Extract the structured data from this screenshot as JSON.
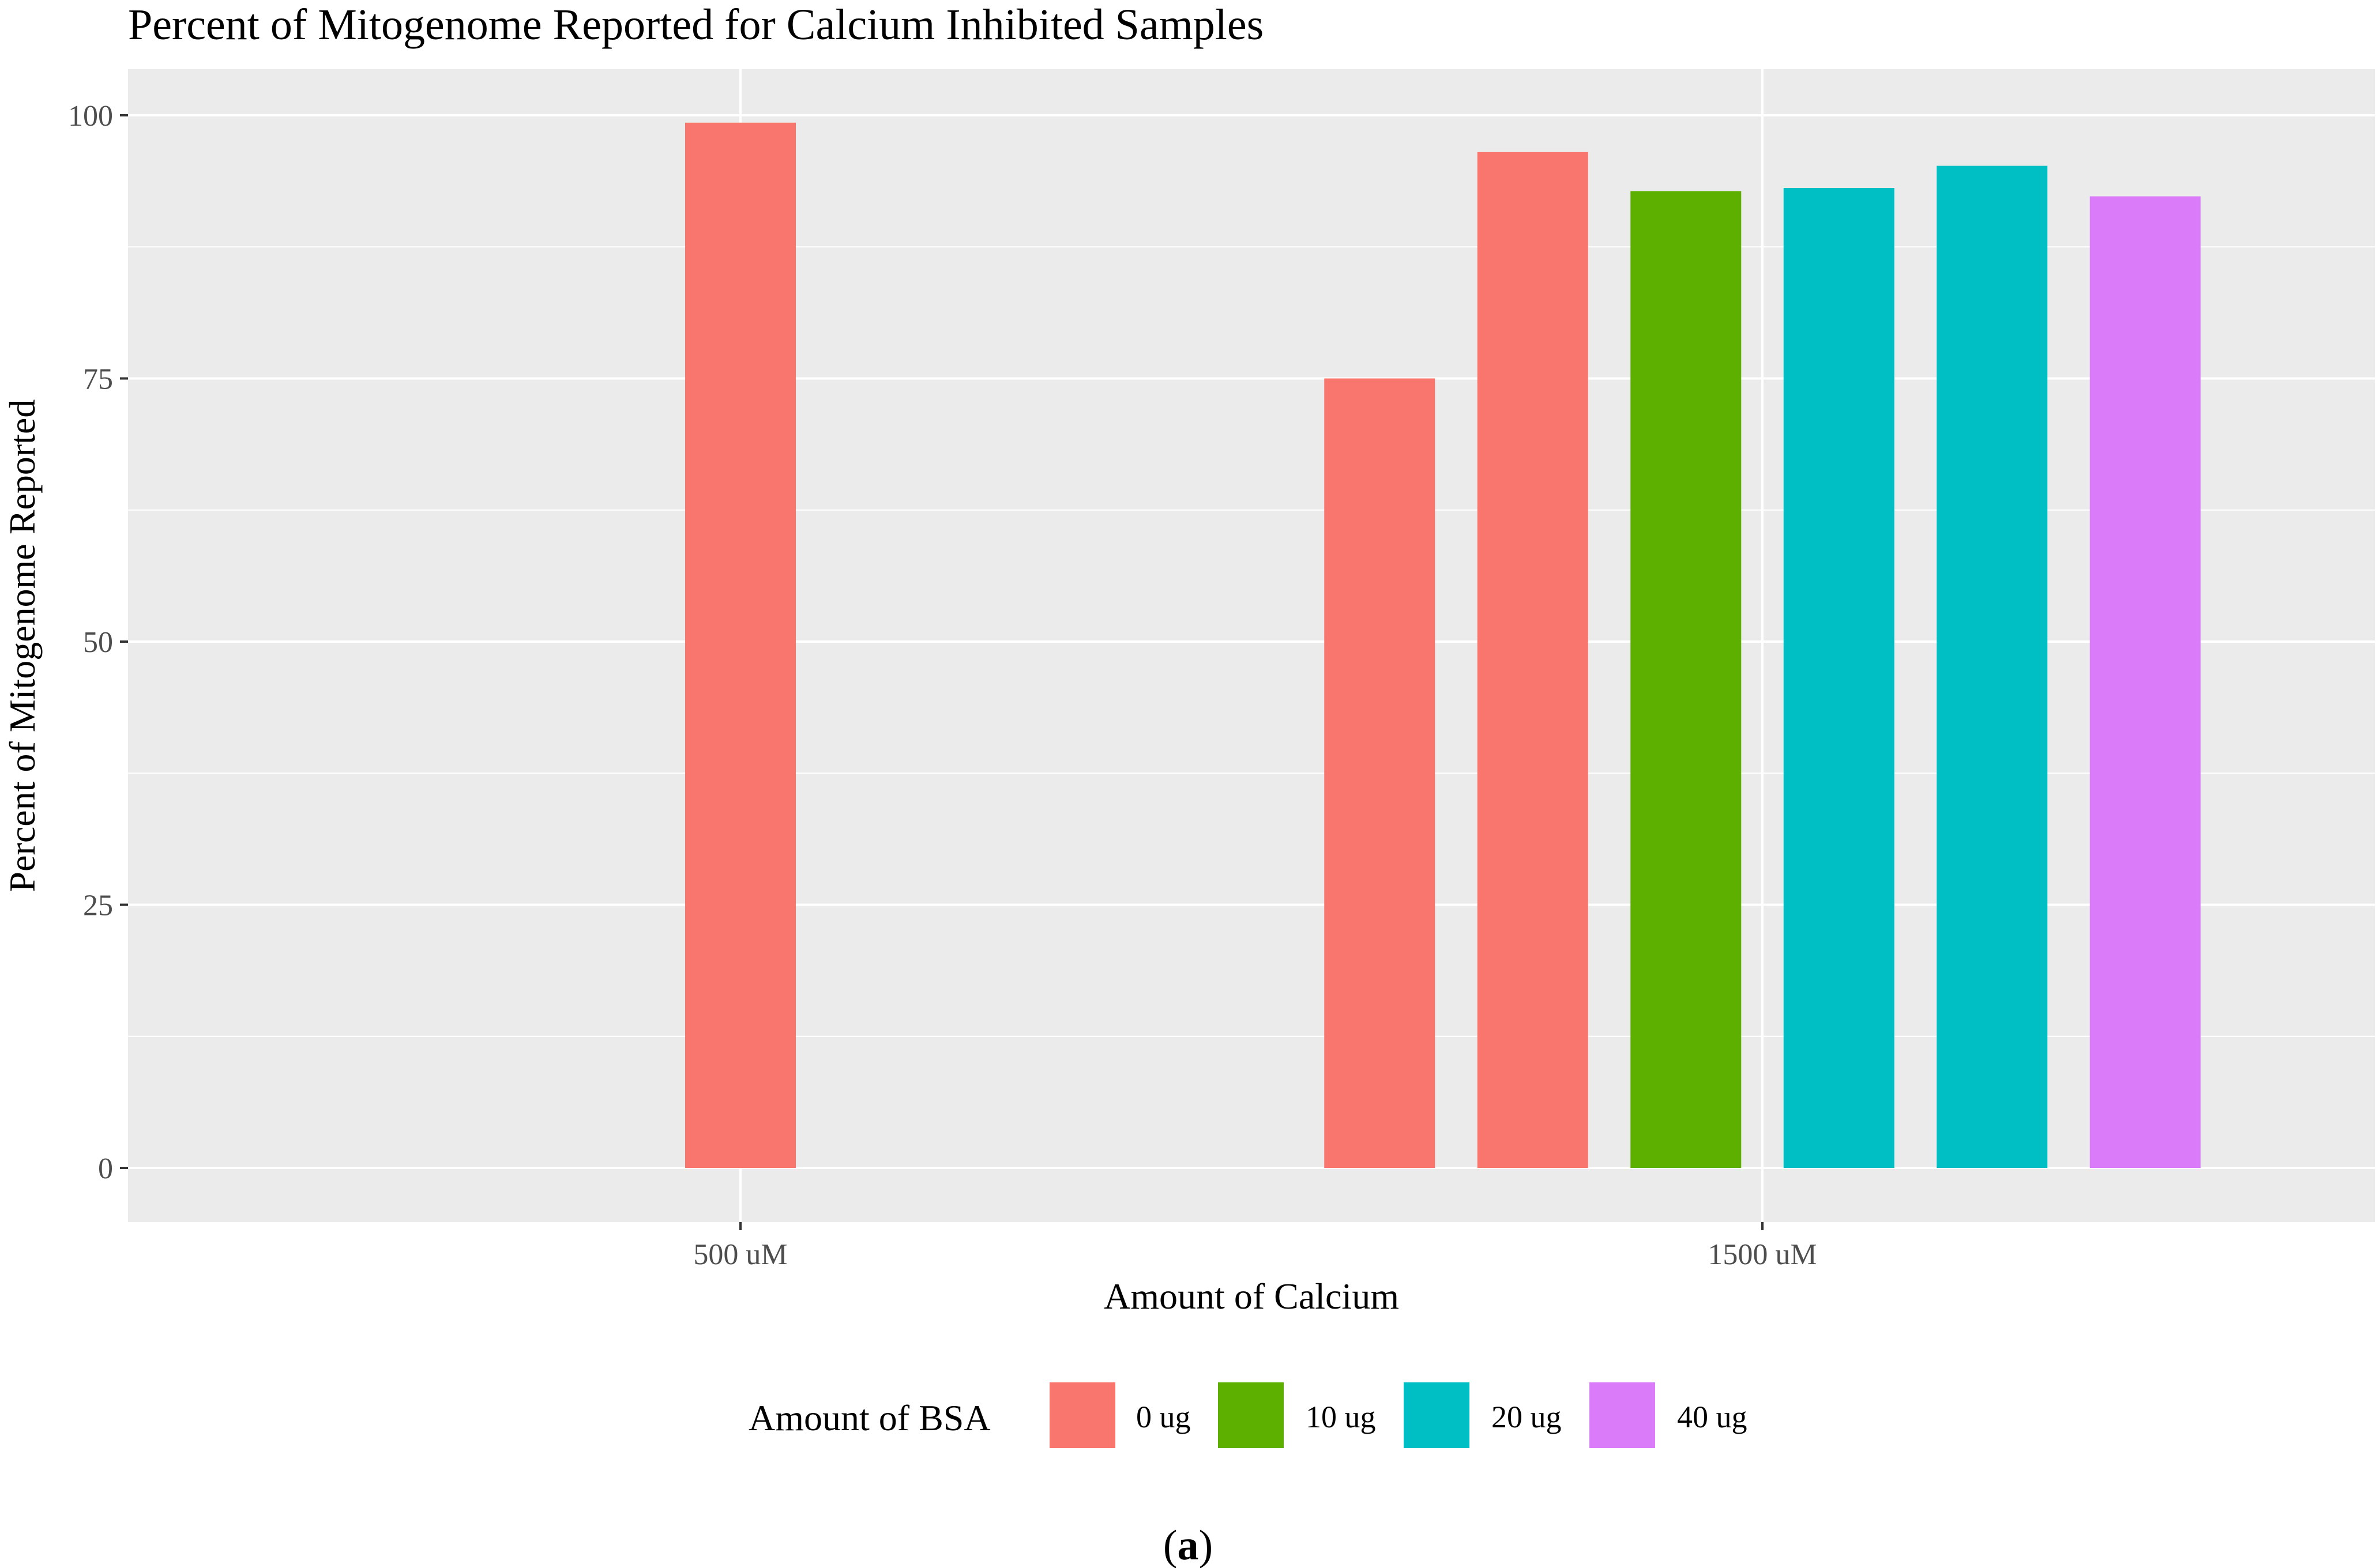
{
  "chart_data": {
    "type": "bar",
    "title": "Percent of Mitogenome Reported for Calcium Inhibited Samples",
    "xlabel": "Amount of Calcium",
    "ylabel": "Percent of Mitogenome Reported",
    "categories": [
      "500 uM",
      "1500 uM"
    ],
    "ylim": [
      0,
      102
    ],
    "yticks": [
      0,
      25,
      50,
      75,
      100
    ],
    "grid": true,
    "legend": {
      "title": "Amount of BSA",
      "position": "bottom",
      "entries": [
        {
          "label": "0 ug",
          "color": "#F8766D"
        },
        {
          "label": "10 ug",
          "color": "#5EB000"
        },
        {
          "label": "20 ug",
          "color": "#00BFC4"
        },
        {
          "label": "40 ug",
          "color": "#DA7BFA"
        }
      ]
    },
    "groups": [
      {
        "category": "500 uM",
        "bars": [
          {
            "bsa": "0 ug",
            "value": 99.3
          }
        ]
      },
      {
        "category": "1500 uM",
        "bars": [
          {
            "bsa": "0 ug",
            "value": 75.0
          },
          {
            "bsa": "0 ug",
            "value": 96.5
          },
          {
            "bsa": "10 ug",
            "value": 92.8
          },
          {
            "bsa": "20 ug",
            "value": 93.1
          },
          {
            "bsa": "20 ug",
            "value": 95.2
          },
          {
            "bsa": "40 ug",
            "value": 92.3
          }
        ]
      }
    ]
  },
  "caption": {
    "open": "(",
    "letter": "a",
    "close": ")"
  }
}
